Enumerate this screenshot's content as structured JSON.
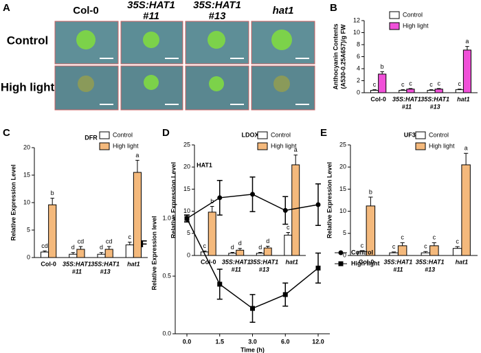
{
  "panel_labels": [
    "A",
    "B",
    "C",
    "D",
    "E",
    "F"
  ],
  "photo_panel": {
    "columns": [
      [
        "Col-0"
      ],
      [
        "35S:HAT1",
        "#11"
      ],
      [
        "35S:HAT1",
        "#13"
      ],
      [
        "hat1"
      ]
    ],
    "rows": [
      "Control",
      "High light"
    ]
  },
  "chart_data": [
    {
      "type": "bar",
      "ylabel": [
        "Anthocyanin Contents",
        "(A530-0.25A657)/g FW"
      ],
      "categories": [
        [
          "Col-0"
        ],
        [
          "35S:HAT1",
          "#11"
        ],
        [
          "35S:HAT1",
          "#13"
        ],
        [
          "hat1"
        ]
      ],
      "series": [
        {
          "name": "Control",
          "color": "#ffffff",
          "values": [
            0.4,
            0.4,
            0.4,
            0.5
          ],
          "errors": [
            0.1,
            0.1,
            0.1,
            0.1
          ],
          "letters": [
            "c",
            "c",
            "c",
            "c"
          ]
        },
        {
          "name": "High light",
          "color": "#f050d8",
          "values": [
            3.1,
            0.6,
            0.6,
            7.1
          ],
          "errors": [
            0.4,
            0.1,
            0.1,
            0.6
          ],
          "letters": [
            "b",
            "c",
            "c",
            "a"
          ]
        }
      ],
      "ylim": [
        0,
        12
      ],
      "yticks": [
        0,
        2,
        4,
        6,
        8,
        10,
        12
      ],
      "legend": "upper left"
    },
    {
      "type": "bar",
      "title": "DFR",
      "ylabel": [
        "Relative Expression Level"
      ],
      "categories": [
        [
          "Col-0"
        ],
        [
          "35S:HAT1",
          "#11"
        ],
        [
          "35S:HAT1",
          "#13"
        ],
        [
          "hat1"
        ]
      ],
      "series": [
        {
          "name": "Control",
          "color": "#ffffff",
          "values": [
            1.0,
            0.6,
            0.6,
            2.3
          ],
          "errors": [
            0.2,
            0.3,
            0.3,
            0.5
          ],
          "letters": [
            "cd",
            "d",
            "d",
            "c"
          ]
        },
        {
          "name": "High light",
          "color": "#f4b97c",
          "values": [
            9.6,
            1.5,
            1.5,
            15.5
          ],
          "errors": [
            1.2,
            0.5,
            0.5,
            2.2
          ],
          "letters": [
            "b",
            "cd",
            "cd",
            "a"
          ]
        }
      ],
      "ylim": [
        0,
        20
      ],
      "yticks": [
        0,
        5,
        10,
        15,
        20
      ],
      "legend": "upper right"
    },
    {
      "type": "bar",
      "title": "LDOX",
      "ylabel": [
        "Relative Expression Level"
      ],
      "categories": [
        [
          "Col-0"
        ],
        [
          "35S:HAT1",
          "#11"
        ],
        [
          "35S:HAT1",
          "#13"
        ],
        [
          "hat1"
        ]
      ],
      "series": [
        {
          "name": "Control",
          "color": "#ffffff",
          "values": [
            0.8,
            0.5,
            0.5,
            4.6
          ],
          "errors": [
            0.2,
            0.2,
            0.2,
            0.6
          ],
          "letters": [
            "c",
            "d",
            "d",
            "c"
          ]
        },
        {
          "name": "High light",
          "color": "#f4b97c",
          "values": [
            9.8,
            1.2,
            1.7,
            20.5
          ],
          "errors": [
            1.3,
            0.4,
            0.4,
            2.2
          ],
          "letters": [
            "b",
            "d",
            "d",
            "a"
          ]
        }
      ],
      "ylim": [
        0,
        25
      ],
      "yticks": [
        0,
        5,
        10,
        15,
        20,
        25
      ],
      "legend": "upper right"
    },
    {
      "type": "bar",
      "title": "UF3GT",
      "ylabel": [
        "Relative Expression Level"
      ],
      "categories": [
        [
          "Col-0"
        ],
        [
          "35S:HAT1",
          "#11"
        ],
        [
          "35S:HAT1",
          "#13"
        ],
        [
          "hat1"
        ]
      ],
      "series": [
        {
          "name": "Control",
          "color": "#ffffff",
          "values": [
            0.9,
            0.6,
            0.6,
            1.6
          ],
          "errors": [
            0.2,
            0.2,
            0.3,
            0.4
          ],
          "letters": [
            "c",
            "c",
            "c",
            "c"
          ]
        },
        {
          "name": "High light",
          "color": "#f4b97c",
          "values": [
            11.2,
            2.2,
            2.2,
            20.5
          ],
          "errors": [
            2.0,
            0.7,
            0.7,
            2.6
          ],
          "letters": [
            "b",
            "c",
            "c",
            "a"
          ]
        }
      ],
      "ylim": [
        0,
        25
      ],
      "yticks": [
        0,
        5,
        10,
        15,
        20,
        25
      ],
      "legend": "upper right"
    },
    {
      "type": "line",
      "title": "HAT1",
      "ylabel": [
        "Relative Expression  level"
      ],
      "xlabel": "Time (h)",
      "categories": [
        "0.0",
        "1.5",
        "3.0",
        "6.0",
        "12.0"
      ],
      "series": [
        {
          "name": "Control",
          "color": "#000000",
          "marker": "circle",
          "values": [
            1.0,
            1.18,
            1.21,
            1.07,
            1.12
          ],
          "errors": [
            0.03,
            0.15,
            0.15,
            0.12,
            0.18
          ]
        },
        {
          "name": "High light",
          "color": "#000000",
          "marker": "square",
          "values": [
            1.0,
            0.43,
            0.22,
            0.34,
            0.57
          ],
          "errors": [
            0.03,
            0.13,
            0.12,
            0.1,
            0.13
          ]
        }
      ],
      "ylim": [
        0,
        1.4
      ],
      "yticks": [
        {
          "value": 0,
          "label": "0.0"
        },
        {
          "value": 0.5,
          "label": "0.5"
        },
        {
          "value": 1,
          "label": "1.0"
        }
      ],
      "legend": "right"
    }
  ]
}
